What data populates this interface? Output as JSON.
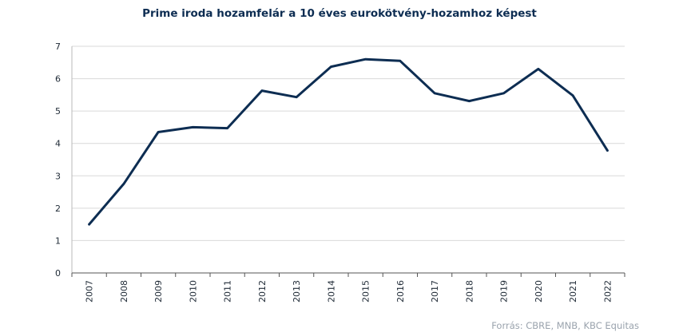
{
  "chart_data": {
    "type": "line",
    "title": "Prime iroda hozamfelár a 10 éves eurokötvény-hozamhoz képest",
    "categories": [
      "2007",
      "2008",
      "2009",
      "2010",
      "2011",
      "2012",
      "2013",
      "2014",
      "2015",
      "2016",
      "2017",
      "2018",
      "2019",
      "2020",
      "2021",
      "2022"
    ],
    "series": [
      {
        "values": [
          1.5,
          2.75,
          4.35,
          4.5,
          4.47,
          5.63,
          5.43,
          6.37,
          6.6,
          6.55,
          5.55,
          5.31,
          5.55,
          6.3,
          5.48,
          3.78
        ]
      }
    ],
    "yticks": [
      "0",
      "1",
      "2",
      "3",
      "4",
      "5",
      "6",
      "7"
    ],
    "ylim": [
      0,
      7
    ],
    "grid": true,
    "line_color": "#0d2d52",
    "source": "Forrás: CBRE, MNB, KBC Equitas"
  }
}
